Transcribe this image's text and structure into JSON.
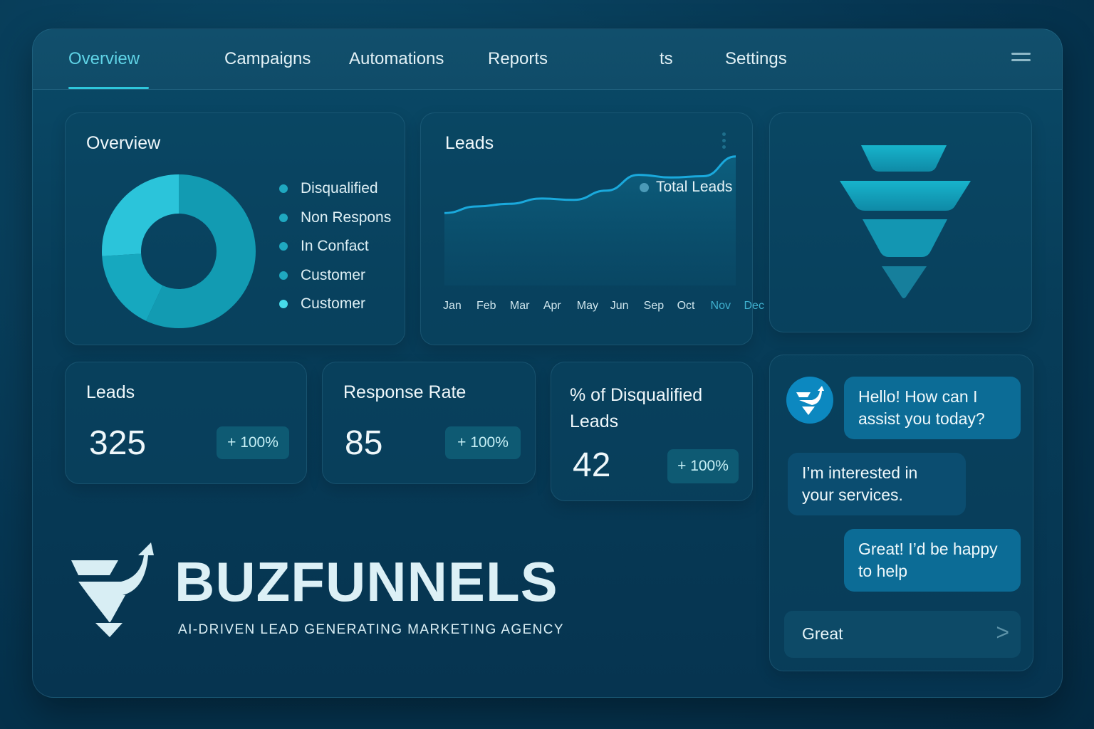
{
  "nav": {
    "tabs": [
      "Overview",
      "Campaigns",
      "Automations",
      "Reports",
      "ts",
      "Settings"
    ],
    "active": "Overview"
  },
  "overview_card": {
    "title": "Overview",
    "legend": [
      "Disqualified",
      "Non Respons",
      "In Confact",
      "Customer",
      "Customer"
    ]
  },
  "leads_card": {
    "title": "Leads",
    "legend": "Total Leads"
  },
  "kpis": [
    {
      "title": "Leads",
      "value": "325",
      "change": "+ 100%"
    },
    {
      "title": "Response Rate",
      "value": "85",
      "change": "+ 100%"
    },
    {
      "title": "% of Disqualified Leads",
      "value": "42",
      "change": "+ 100%"
    }
  ],
  "brand": {
    "name": "BUZFUNNELS",
    "tagline": "AI-DRIVEN LEAD GENERATING MARKETING AGENCY"
  },
  "chat": {
    "messages": [
      {
        "from": "bot",
        "text": "Hello! How can I assist you today?"
      },
      {
        "from": "user",
        "text": "I’m interested in your services."
      },
      {
        "from": "bot",
        "text": "Great! I’d be happy to help"
      }
    ],
    "input_value": "Great"
  },
  "colors": {
    "accent": "#2ec7dc",
    "line": "#1aa9dc",
    "bg": "#063652"
  },
  "chart_data": [
    {
      "type": "pie",
      "title": "Overview",
      "segments": [
        {
          "name": "segment-1",
          "fraction": 0.57,
          "color": "#129bb2"
        },
        {
          "name": "segment-2",
          "fraction": 0.17,
          "color": "#16a8bf"
        },
        {
          "name": "segment-3",
          "fraction": 0.26,
          "color": "#2bc4da"
        }
      ]
    },
    {
      "type": "area",
      "title": "Leads",
      "categories": [
        "Jan",
        "Feb",
        "Mar",
        "Apr",
        "May",
        "Jun",
        "Sep",
        "Oct",
        "Nov",
        "Dec"
      ],
      "series": [
        {
          "name": "Total Leads",
          "values": [
            55,
            60,
            62,
            66,
            65,
            72,
            84,
            82,
            83,
            98
          ]
        }
      ],
      "ylim": [
        0,
        120
      ]
    }
  ]
}
